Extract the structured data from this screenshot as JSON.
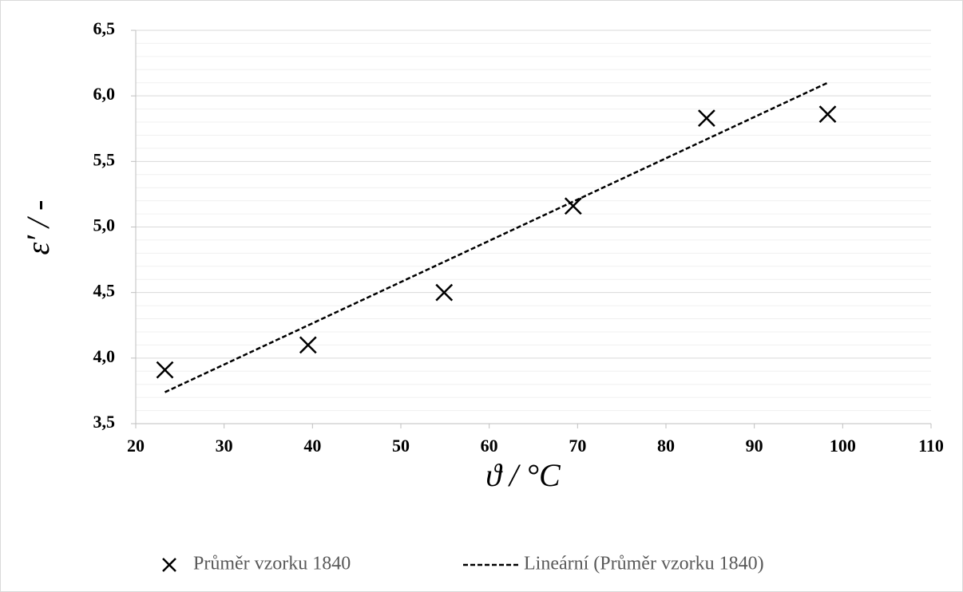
{
  "chart_data": {
    "type": "scatter",
    "xlabel": "ϑ / °C",
    "ylabel": "ε′ / -",
    "series": [
      {
        "name": "Průměr vzorku 1840",
        "color": "#000000",
        "marker": "x",
        "x": [
          23.3,
          39.5,
          54.9,
          69.5,
          84.6,
          98.3
        ],
        "values": [
          3.91,
          4.1,
          4.5,
          5.16,
          5.83,
          5.86
        ]
      },
      {
        "name": "Lineární (Průměr vzorku 1840)",
        "color": "#000000",
        "line": "dashed",
        "x": [
          23.3,
          98.3
        ],
        "values": [
          3.74,
          6.1
        ]
      }
    ],
    "xlim": [
      20,
      110
    ],
    "xticks": [
      20,
      30,
      40,
      50,
      60,
      70,
      80,
      90,
      100,
      110
    ],
    "ylim": [
      3.5,
      6.5
    ],
    "yticks": [
      {
        "value": 3.5,
        "label": "3,5"
      },
      {
        "value": 4.0,
        "label": "4,0"
      },
      {
        "value": 4.5,
        "label": "4,5"
      },
      {
        "value": 5.0,
        "label": "5,0"
      },
      {
        "value": 5.5,
        "label": "5,5"
      },
      {
        "value": 6.0,
        "label": "6,0"
      },
      {
        "value": 6.5,
        "label": "6,5"
      }
    ],
    "yminorticks": [
      3.6,
      3.7,
      3.8,
      3.9,
      4.1,
      4.2,
      4.3,
      4.4,
      4.6,
      4.7,
      4.8,
      4.9,
      5.1,
      5.2,
      5.3,
      5.4,
      5.6,
      5.7,
      5.8,
      5.9,
      6.1,
      6.2,
      6.3,
      6.4
    ],
    "grid": true,
    "legend": "bottom"
  }
}
